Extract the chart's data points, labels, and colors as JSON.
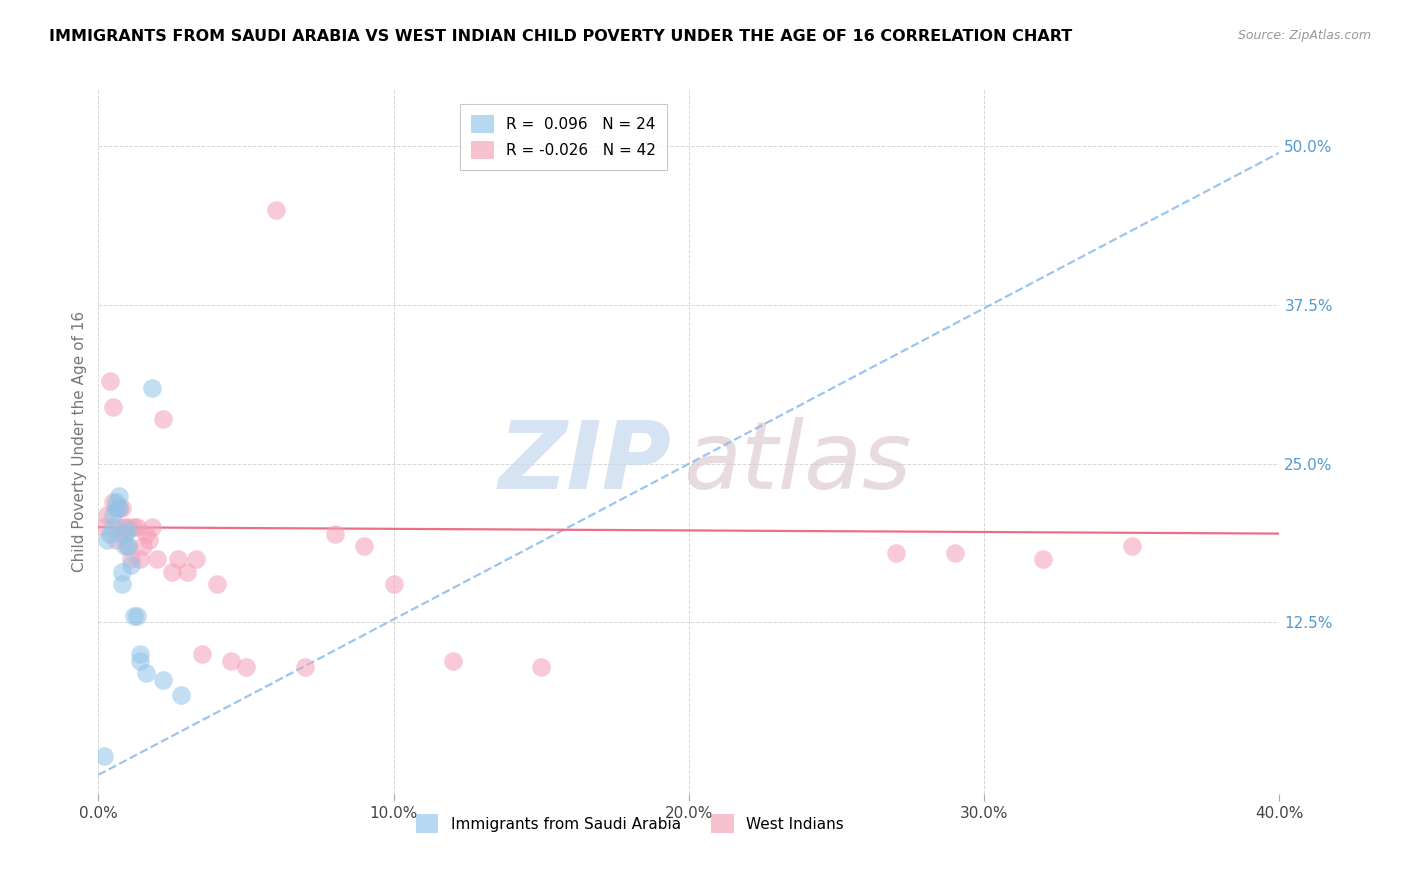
{
  "title": "IMMIGRANTS FROM SAUDI ARABIA VS WEST INDIAN CHILD POVERTY UNDER THE AGE OF 16 CORRELATION CHART",
  "source": "Source: ZipAtlas.com",
  "ylabel": "Child Poverty Under the Age of 16",
  "xlim": [
    0.0,
    0.4
  ],
  "ylim": [
    -0.01,
    0.545
  ],
  "xticks": [
    0.0,
    0.1,
    0.2,
    0.3,
    0.4
  ],
  "yticks": [
    0.125,
    0.25,
    0.375,
    0.5
  ],
  "xtick_labels": [
    "0.0%",
    "10.0%",
    "20.0%",
    "30.0%",
    "40.0%"
  ],
  "ytick_labels": [
    "12.5%",
    "25.0%",
    "37.5%",
    "50.0%"
  ],
  "legend_r1": "0.096",
  "legend_n1": "24",
  "legend_r2": "-0.026",
  "legend_n2": "42",
  "blue_scatter_color": "#90c4e8",
  "pink_scatter_color": "#f4a0b8",
  "blue_line_color": "#88bbee",
  "pink_line_color": "#e8607a",
  "ytick_color": "#5599cc",
  "blue_line_x0": 0.0,
  "blue_line_y0": 0.005,
  "blue_line_x1": 0.4,
  "blue_line_y1": 0.495,
  "pink_line_x0": 0.0,
  "pink_line_y0": 0.2,
  "pink_line_x1": 0.4,
  "pink_line_y1": 0.195,
  "saudi_x": [
    0.002,
    0.003,
    0.004,
    0.005,
    0.005,
    0.006,
    0.006,
    0.007,
    0.007,
    0.008,
    0.008,
    0.009,
    0.009,
    0.01,
    0.01,
    0.011,
    0.012,
    0.013,
    0.014,
    0.014,
    0.016,
    0.018,
    0.022,
    0.028
  ],
  "saudi_y": [
    0.02,
    0.19,
    0.195,
    0.2,
    0.21,
    0.215,
    0.22,
    0.215,
    0.225,
    0.155,
    0.165,
    0.185,
    0.195,
    0.185,
    0.198,
    0.17,
    0.13,
    0.13,
    0.095,
    0.1,
    0.085,
    0.31,
    0.08,
    0.068
  ],
  "west_indian_x": [
    0.002,
    0.003,
    0.004,
    0.005,
    0.005,
    0.006,
    0.007,
    0.007,
    0.008,
    0.008,
    0.009,
    0.01,
    0.01,
    0.011,
    0.012,
    0.013,
    0.014,
    0.015,
    0.016,
    0.017,
    0.018,
    0.02,
    0.022,
    0.025,
    0.027,
    0.03,
    0.033,
    0.035,
    0.04,
    0.045,
    0.05,
    0.06,
    0.07,
    0.08,
    0.09,
    0.1,
    0.12,
    0.15,
    0.27,
    0.29,
    0.32,
    0.35
  ],
  "west_indian_y": [
    0.2,
    0.21,
    0.315,
    0.295,
    0.22,
    0.19,
    0.215,
    0.2,
    0.215,
    0.195,
    0.2,
    0.185,
    0.2,
    0.175,
    0.2,
    0.2,
    0.175,
    0.185,
    0.195,
    0.19,
    0.2,
    0.175,
    0.285,
    0.165,
    0.175,
    0.165,
    0.175,
    0.1,
    0.155,
    0.095,
    0.09,
    0.45,
    0.09,
    0.195,
    0.185,
    0.155,
    0.095,
    0.09,
    0.18,
    0.18,
    0.175,
    0.185
  ]
}
